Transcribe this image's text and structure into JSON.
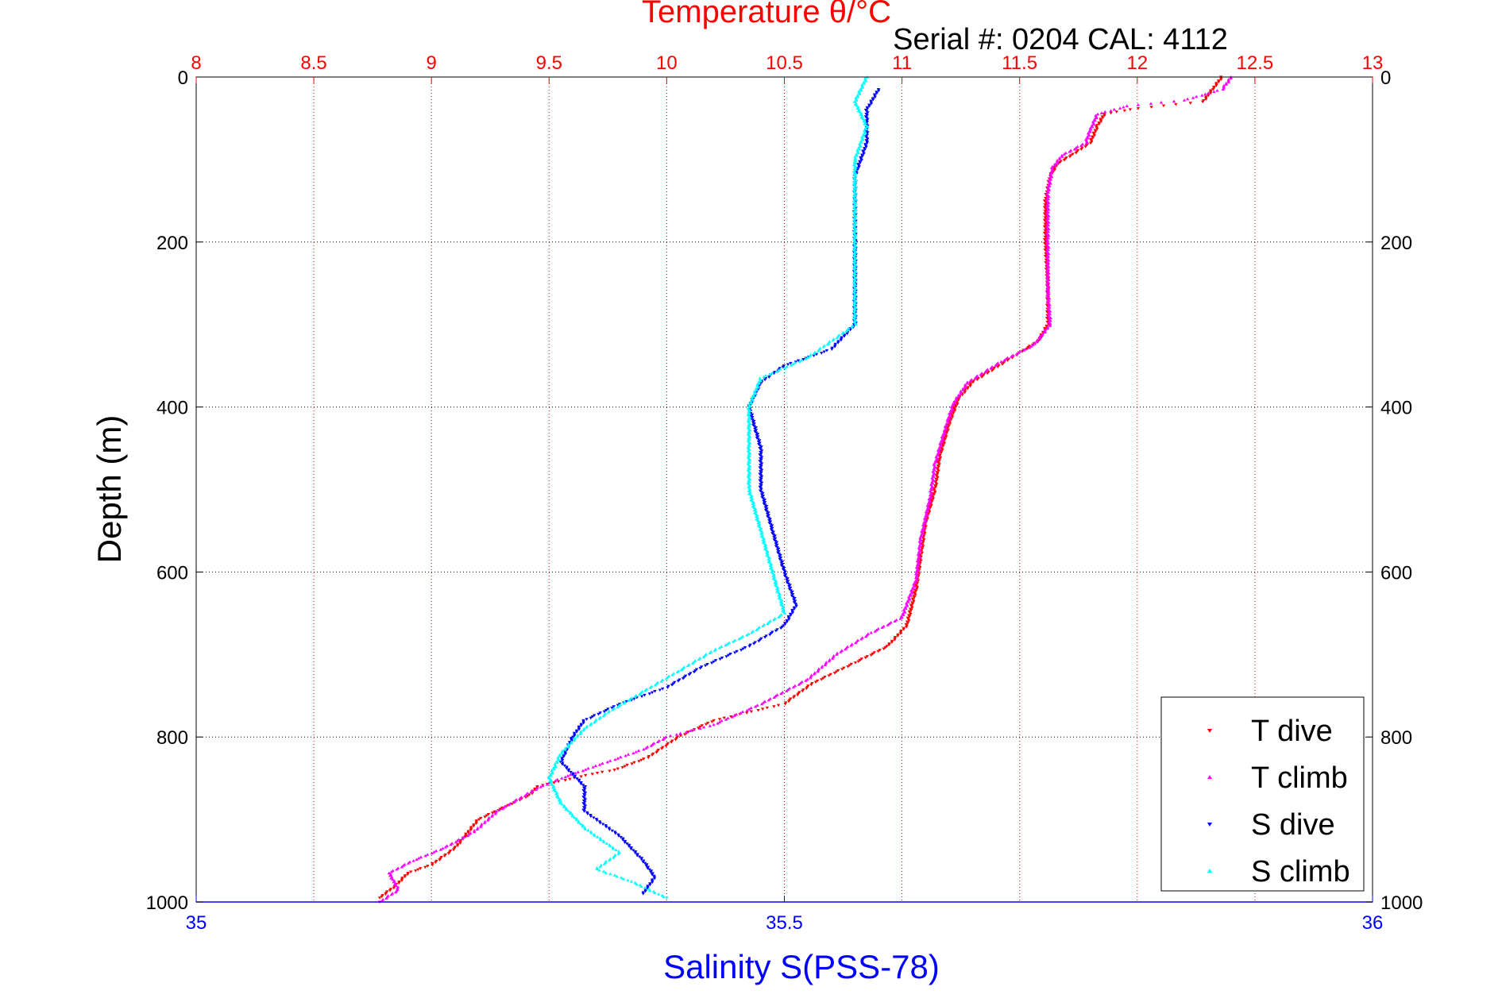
{
  "chart_data": {
    "type": "scatter",
    "title": "Temperature θ/°C",
    "subtitle": "Serial #: 0204  CAL: 4112",
    "ylabel": "Depth (m)",
    "xlabel": "Salinity S(PSS-78)",
    "grid": true,
    "legend_position": "bottom-right",
    "y_axis": {
      "range": [
        0,
        1000
      ],
      "inverted": true,
      "ticks": [
        0,
        200,
        400,
        600,
        800,
        1000
      ]
    },
    "top_axis": {
      "quantity": "temperature",
      "range": [
        8,
        13
      ],
      "ticks": [
        "8",
        "8.5",
        "9",
        "9.5",
        "10",
        "10.5",
        "11",
        "11.5",
        "12",
        "12.5",
        "13"
      ],
      "color": "#ff0000"
    },
    "bottom_axis": {
      "quantity": "salinity",
      "range": [
        35,
        36
      ],
      "ticks": [
        "35",
        "35.5",
        "36"
      ],
      "color": "#0000ff"
    },
    "series": [
      {
        "name": "T dive",
        "axis": "temperature",
        "color": "#ff0000",
        "marker": "▾",
        "points": [
          [
            12.36,
            0
          ],
          [
            12.32,
            15
          ],
          [
            12.28,
            30
          ],
          [
            12.0,
            38
          ],
          [
            11.86,
            45
          ],
          [
            11.83,
            60
          ],
          [
            11.8,
            80
          ],
          [
            11.72,
            95
          ],
          [
            11.66,
            105
          ],
          [
            11.63,
            120
          ],
          [
            11.61,
            150
          ],
          [
            11.61,
            200
          ],
          [
            11.62,
            250
          ],
          [
            11.62,
            300
          ],
          [
            11.58,
            320
          ],
          [
            11.44,
            345
          ],
          [
            11.3,
            370
          ],
          [
            11.24,
            390
          ],
          [
            11.2,
            420
          ],
          [
            11.16,
            460
          ],
          [
            11.14,
            500
          ],
          [
            11.1,
            540
          ],
          [
            11.08,
            580
          ],
          [
            11.06,
            620
          ],
          [
            11.02,
            665
          ],
          [
            10.94,
            690
          ],
          [
            10.8,
            710
          ],
          [
            10.62,
            735
          ],
          [
            10.5,
            760
          ],
          [
            10.2,
            780
          ],
          [
            10.05,
            800
          ],
          [
            9.92,
            825
          ],
          [
            9.78,
            840
          ],
          [
            9.68,
            845
          ],
          [
            9.45,
            860
          ],
          [
            9.42,
            870
          ],
          [
            9.2,
            900
          ],
          [
            9.1,
            935
          ],
          [
            9.0,
            955
          ],
          [
            8.9,
            965
          ],
          [
            8.85,
            980
          ],
          [
            8.78,
            995
          ]
        ]
      },
      {
        "name": "T climb",
        "axis": "temperature",
        "color": "#ff00ff",
        "marker": "▴",
        "points": [
          [
            12.4,
            0
          ],
          [
            12.36,
            15
          ],
          [
            12.2,
            28
          ],
          [
            11.96,
            35
          ],
          [
            11.83,
            45
          ],
          [
            11.8,
            65
          ],
          [
            11.78,
            80
          ],
          [
            11.68,
            95
          ],
          [
            11.64,
            110
          ],
          [
            11.62,
            140
          ],
          [
            11.62,
            200
          ],
          [
            11.62,
            260
          ],
          [
            11.63,
            300
          ],
          [
            11.56,
            325
          ],
          [
            11.42,
            345
          ],
          [
            11.28,
            370
          ],
          [
            11.22,
            395
          ],
          [
            11.18,
            430
          ],
          [
            11.14,
            470
          ],
          [
            11.12,
            510
          ],
          [
            11.08,
            560
          ],
          [
            11.06,
            610
          ],
          [
            11.0,
            655
          ],
          [
            10.86,
            675
          ],
          [
            10.72,
            700
          ],
          [
            10.6,
            730
          ],
          [
            10.4,
            760
          ],
          [
            10.2,
            785
          ],
          [
            10.0,
            800
          ],
          [
            9.9,
            815
          ],
          [
            9.7,
            835
          ],
          [
            9.55,
            850
          ],
          [
            9.45,
            862
          ],
          [
            9.28,
            890
          ],
          [
            9.18,
            915
          ],
          [
            9.05,
            935
          ],
          [
            8.92,
            950
          ],
          [
            8.82,
            965
          ],
          [
            8.86,
            985
          ],
          [
            8.78,
            1000
          ]
        ]
      },
      {
        "name": "S dive",
        "axis": "salinity",
        "color": "#0000ff",
        "marker": "▾",
        "points": [
          [
            35.58,
            15
          ],
          [
            35.57,
            40
          ],
          [
            35.57,
            80
          ],
          [
            35.56,
            120
          ],
          [
            35.56,
            200
          ],
          [
            35.56,
            250
          ],
          [
            35.56,
            300
          ],
          [
            35.54,
            330
          ],
          [
            35.5,
            350
          ],
          [
            35.48,
            370
          ],
          [
            35.47,
            400
          ],
          [
            35.48,
            450
          ],
          [
            35.48,
            500
          ],
          [
            35.49,
            550
          ],
          [
            35.5,
            600
          ],
          [
            35.51,
            640
          ],
          [
            35.5,
            665
          ],
          [
            35.47,
            690
          ],
          [
            35.43,
            715
          ],
          [
            35.4,
            740
          ],
          [
            35.36,
            760
          ],
          [
            35.33,
            780
          ],
          [
            35.32,
            800
          ],
          [
            35.31,
            830
          ],
          [
            35.33,
            860
          ],
          [
            35.33,
            890
          ],
          [
            35.36,
            920
          ],
          [
            35.38,
            950
          ],
          [
            35.39,
            970
          ],
          [
            35.38,
            990
          ]
        ]
      },
      {
        "name": "S climb",
        "axis": "salinity",
        "color": "#00ffff",
        "marker": "▴",
        "points": [
          [
            35.57,
            0
          ],
          [
            35.56,
            30
          ],
          [
            35.57,
            60
          ],
          [
            35.56,
            100
          ],
          [
            35.56,
            150
          ],
          [
            35.56,
            200
          ],
          [
            35.56,
            250
          ],
          [
            35.56,
            300
          ],
          [
            35.52,
            340
          ],
          [
            35.48,
            365
          ],
          [
            35.47,
            400
          ],
          [
            35.47,
            450
          ],
          [
            35.47,
            500
          ],
          [
            35.48,
            550
          ],
          [
            35.49,
            600
          ],
          [
            35.5,
            650
          ],
          [
            35.47,
            675
          ],
          [
            35.44,
            695
          ],
          [
            35.41,
            720
          ],
          [
            35.38,
            745
          ],
          [
            35.35,
            770
          ],
          [
            35.33,
            790
          ],
          [
            35.31,
            820
          ],
          [
            35.3,
            850
          ],
          [
            35.31,
            880
          ],
          [
            35.33,
            910
          ],
          [
            35.36,
            940
          ],
          [
            35.34,
            960
          ],
          [
            35.37,
            975
          ],
          [
            35.4,
            995
          ]
        ]
      }
    ]
  }
}
